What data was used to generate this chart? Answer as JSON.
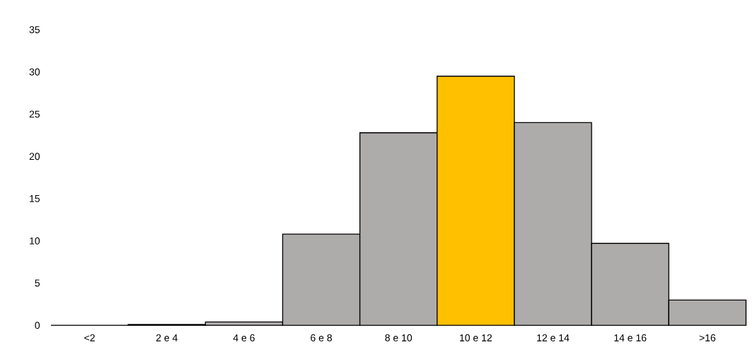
{
  "chart_data": {
    "type": "bar",
    "categories": [
      "<2",
      "2 e 4",
      "4 e 6",
      "6 e 8",
      "8 e 10",
      "10 e 12",
      "12 e 14",
      "14 e 16",
      ">16"
    ],
    "values": [
      0,
      0.1,
      0.4,
      10.8,
      22.8,
      29.5,
      24.0,
      9.7,
      3.0
    ],
    "colors": [
      "#aeabab",
      "#aeabab",
      "#aeabab",
      "#aeabab",
      "#aeabab",
      "#ffc000",
      "#aeabab",
      "#aeabab",
      "#aeabab"
    ],
    "ylim": [
      0,
      35
    ],
    "yticks": [
      0,
      5,
      10,
      15,
      20,
      25,
      30,
      35
    ]
  }
}
